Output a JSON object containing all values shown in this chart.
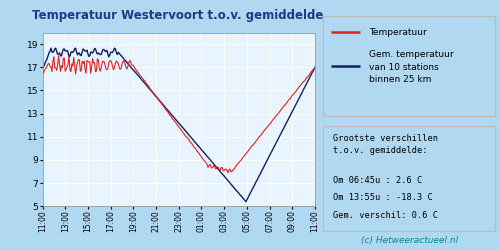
{
  "title": "Temperatuur Westervoort t.o.v. gemiddelde",
  "title_color": "#1a3a8a",
  "bg_outer": "#b0d8f0",
  "bg_plot": "#e8f4ff",
  "grid_color": "#ffffff",
  "ylabel_ticks": [
    5,
    7,
    9,
    11,
    13,
    15,
    17,
    19
  ],
  "xtick_labels": [
    "11:00",
    "13:00",
    "15:00",
    "17:00",
    "19:00",
    "21:00",
    "23:00",
    "01:00",
    "03:00",
    "05:00",
    "07:00",
    "09:00",
    "11:00"
  ],
  "red_line_color": "#dd2222",
  "blue_line_color": "#112266",
  "legend_box_color": "#ffffff",
  "info_box_color": "#e8e8e8",
  "copyright_color": "#008899",
  "legend_line1": "Temperatuur",
  "legend_line2": "Gem. temperatuur\nvan 10 stations\nbinnen 25 km",
  "info_title": "Grootste verschillen\nt.o.v. gemiddelde:",
  "info_line1": "Om 06:45u : 2.6 C",
  "info_line2": "Om 13:55u : -18.3 C",
  "info_line3": "Gem. verschil: 0.6 C",
  "copyright": "(c) Hetweeractueel.nl",
  "ylim": [
    5,
    20
  ],
  "num_points": 289
}
